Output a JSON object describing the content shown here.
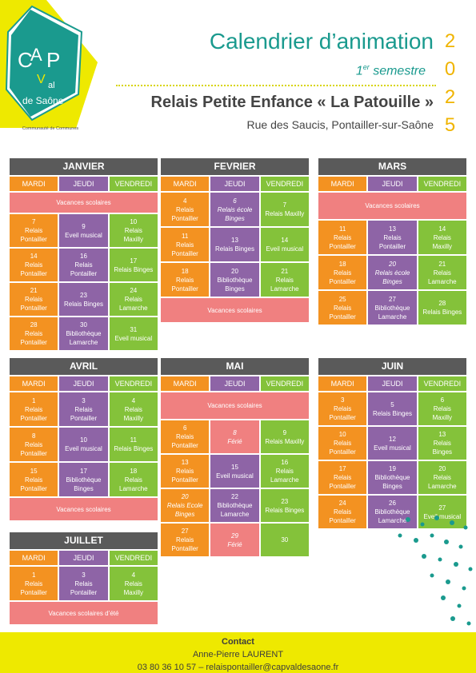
{
  "logo": {
    "letters": [
      "C",
      "A",
      "P",
      "V",
      "al",
      "de Saône"
    ],
    "tagline": "Communauté de Communes"
  },
  "header": {
    "title": "Calendrier d’animation",
    "subtitle_num": "1",
    "subtitle_sup": "er",
    "subtitle_rest": "semestre",
    "year_digits": [
      "2",
      "0",
      "2",
      "5"
    ],
    "place": "Relais Petite Enfance « La Patouille »",
    "address": "Rue des Saucis, Pontailler-sur-Saône"
  },
  "day_headers": [
    "MARDI",
    "JEUDI",
    "VENDREDI"
  ],
  "months": {
    "janvier": {
      "name": "JANVIER",
      "vacation_top": "Vacances scolaires",
      "rows": [
        [
          {
            "t": "7\nRelais\nPontailler"
          },
          {
            "t": "9\nEveil musical"
          },
          {
            "t": "10\nRelais\nMaxilly"
          }
        ],
        [
          {
            "t": "14\nRelais\nPontailler"
          },
          {
            "t": "16\nRelais\nPontailler"
          },
          {
            "t": "17\nRelais Binges"
          }
        ],
        [
          {
            "t": "21\nRelais\nPontailler"
          },
          {
            "t": "23\nRelais Binges"
          },
          {
            "t": "24\nRelais\nLamarche"
          }
        ],
        [
          {
            "t": "28\nRelais\nPontailler"
          },
          {
            "t": "30\nBibliothèque\nLamarche"
          },
          {
            "t": "31\nEveil musical"
          }
        ]
      ]
    },
    "fevrier": {
      "name": "FEVRIER",
      "rows": [
        [
          {
            "t": "4\nRelais\nPontailler"
          },
          {
            "t": "6\nRelais école\nBinges"
          },
          {
            "t": "7\nRelais Maxilly"
          }
        ],
        [
          {
            "t": "11\nRelais\nPontailler"
          },
          {
            "t": "13\nRelais Binges"
          },
          {
            "t": "14\nEveil musical"
          }
        ],
        [
          {
            "t": "18\nRelais\nPontailler"
          },
          {
            "t": "20\nBibliothèque\nBinges"
          },
          {
            "t": "21\nRelais\nLamarche"
          }
        ]
      ],
      "vacation_bottom": "Vacances scolaires"
    },
    "mars": {
      "name": "MARS",
      "vacation_top": "Vacances scolaires",
      "rows": [
        [
          {
            "t": "11\nRelais\nPontailler"
          },
          {
            "t": "13\nRelais\nPontailler"
          },
          {
            "t": "14\nRelais\nMaxilly"
          }
        ],
        [
          {
            "t": "18\nRelais\nPontailler"
          },
          {
            "t": "20\nRelais école\nBinges"
          },
          {
            "t": "21\nRelais\nLamarche"
          }
        ],
        [
          {
            "t": "25\nRelais\nPontailler"
          },
          {
            "t": "27\nBibliothèque\nLamarche"
          },
          {
            "t": "28\nRelais Binges"
          }
        ]
      ]
    },
    "avril": {
      "name": "AVRIL",
      "rows": [
        [
          {
            "t": "1\nRelais\nPontailler"
          },
          {
            "t": "3\nRelais\nPontailler"
          },
          {
            "t": "4\nRelais\nMaxilly"
          }
        ],
        [
          {
            "t": "8\nRelais\nPontailler"
          },
          {
            "t": "10\nEveil musical"
          },
          {
            "t": "11\nRelais Binges"
          }
        ],
        [
          {
            "t": "15\nRelais\nPontailler"
          },
          {
            "t": "17\nBibliothèque\nBinges"
          },
          {
            "t": "18\nRelais\nLamarche"
          }
        ]
      ],
      "vacation_bottom": "Vacances scolaires"
    },
    "mai": {
      "name": "MAI",
      "vacation_top": "Vacances scolaires",
      "rows": [
        [
          {
            "t": "6\nRelais\nPontailler"
          },
          {
            "t": "8\nFérié"
          },
          {
            "t": "9\nRelais Maxilly"
          }
        ],
        [
          {
            "t": "13\nRelais\nPontailler"
          },
          {
            "t": "15\nEveil musical"
          },
          {
            "t": "16\nRelais\nLamarche"
          }
        ],
        [
          {
            "t": "20\nRelais Ecole\nBinges"
          },
          {
            "t": "22\nBibliothèque\nLamarche"
          },
          {
            "t": "23\nRelais Binges"
          }
        ],
        [
          {
            "t": "27\nRelais\nPontailler"
          },
          {
            "t": "29\nFérié"
          },
          {
            "t": "30"
          }
        ]
      ]
    },
    "juin": {
      "name": "JUIN",
      "rows": [
        [
          {
            "t": "3\nRelais\nPontailler"
          },
          {
            "t": "5\nRelais Binges"
          },
          {
            "t": "6\nRelais\nMaxilly"
          }
        ],
        [
          {
            "t": "10\nRelais\nPontailler"
          },
          {
            "t": "12\nEveil musical"
          },
          {
            "t": "13\nRelais\nBinges"
          }
        ],
        [
          {
            "t": "17\nRelais\nPontailler"
          },
          {
            "t": "19\nBibliothèque\nBinges"
          },
          {
            "t": "20\nRelais\nLamarche"
          }
        ],
        [
          {
            "t": "24\nRelais\nPontailler"
          },
          {
            "t": "26\nBibliothèque\nLamarche"
          },
          {
            "t": "27\nEveil musical"
          }
        ]
      ]
    },
    "juillet": {
      "name": "JUILLET",
      "rows": [
        [
          {
            "t": "1\nRelais\nPontailler"
          },
          {
            "t": "3\nRelais\nPontailler"
          },
          {
            "t": "4\nRelais\nMaxilly"
          }
        ]
      ],
      "vacation_bottom": "Vacances scolaires d’été"
    }
  },
  "contact": {
    "title": "Contact",
    "name": "Anne-Pierre LAURENT",
    "line": "03 80 36 10 57 – relaispontailler@capvaldesaone.fr"
  },
  "colors": {
    "teal": "#1a9a8e",
    "yellow": "#eee900",
    "orange": "#f39221",
    "purple": "#8e64a6",
    "green": "#84c23a",
    "salmon": "#f08080",
    "header_grey": "#5a5a5a"
  }
}
